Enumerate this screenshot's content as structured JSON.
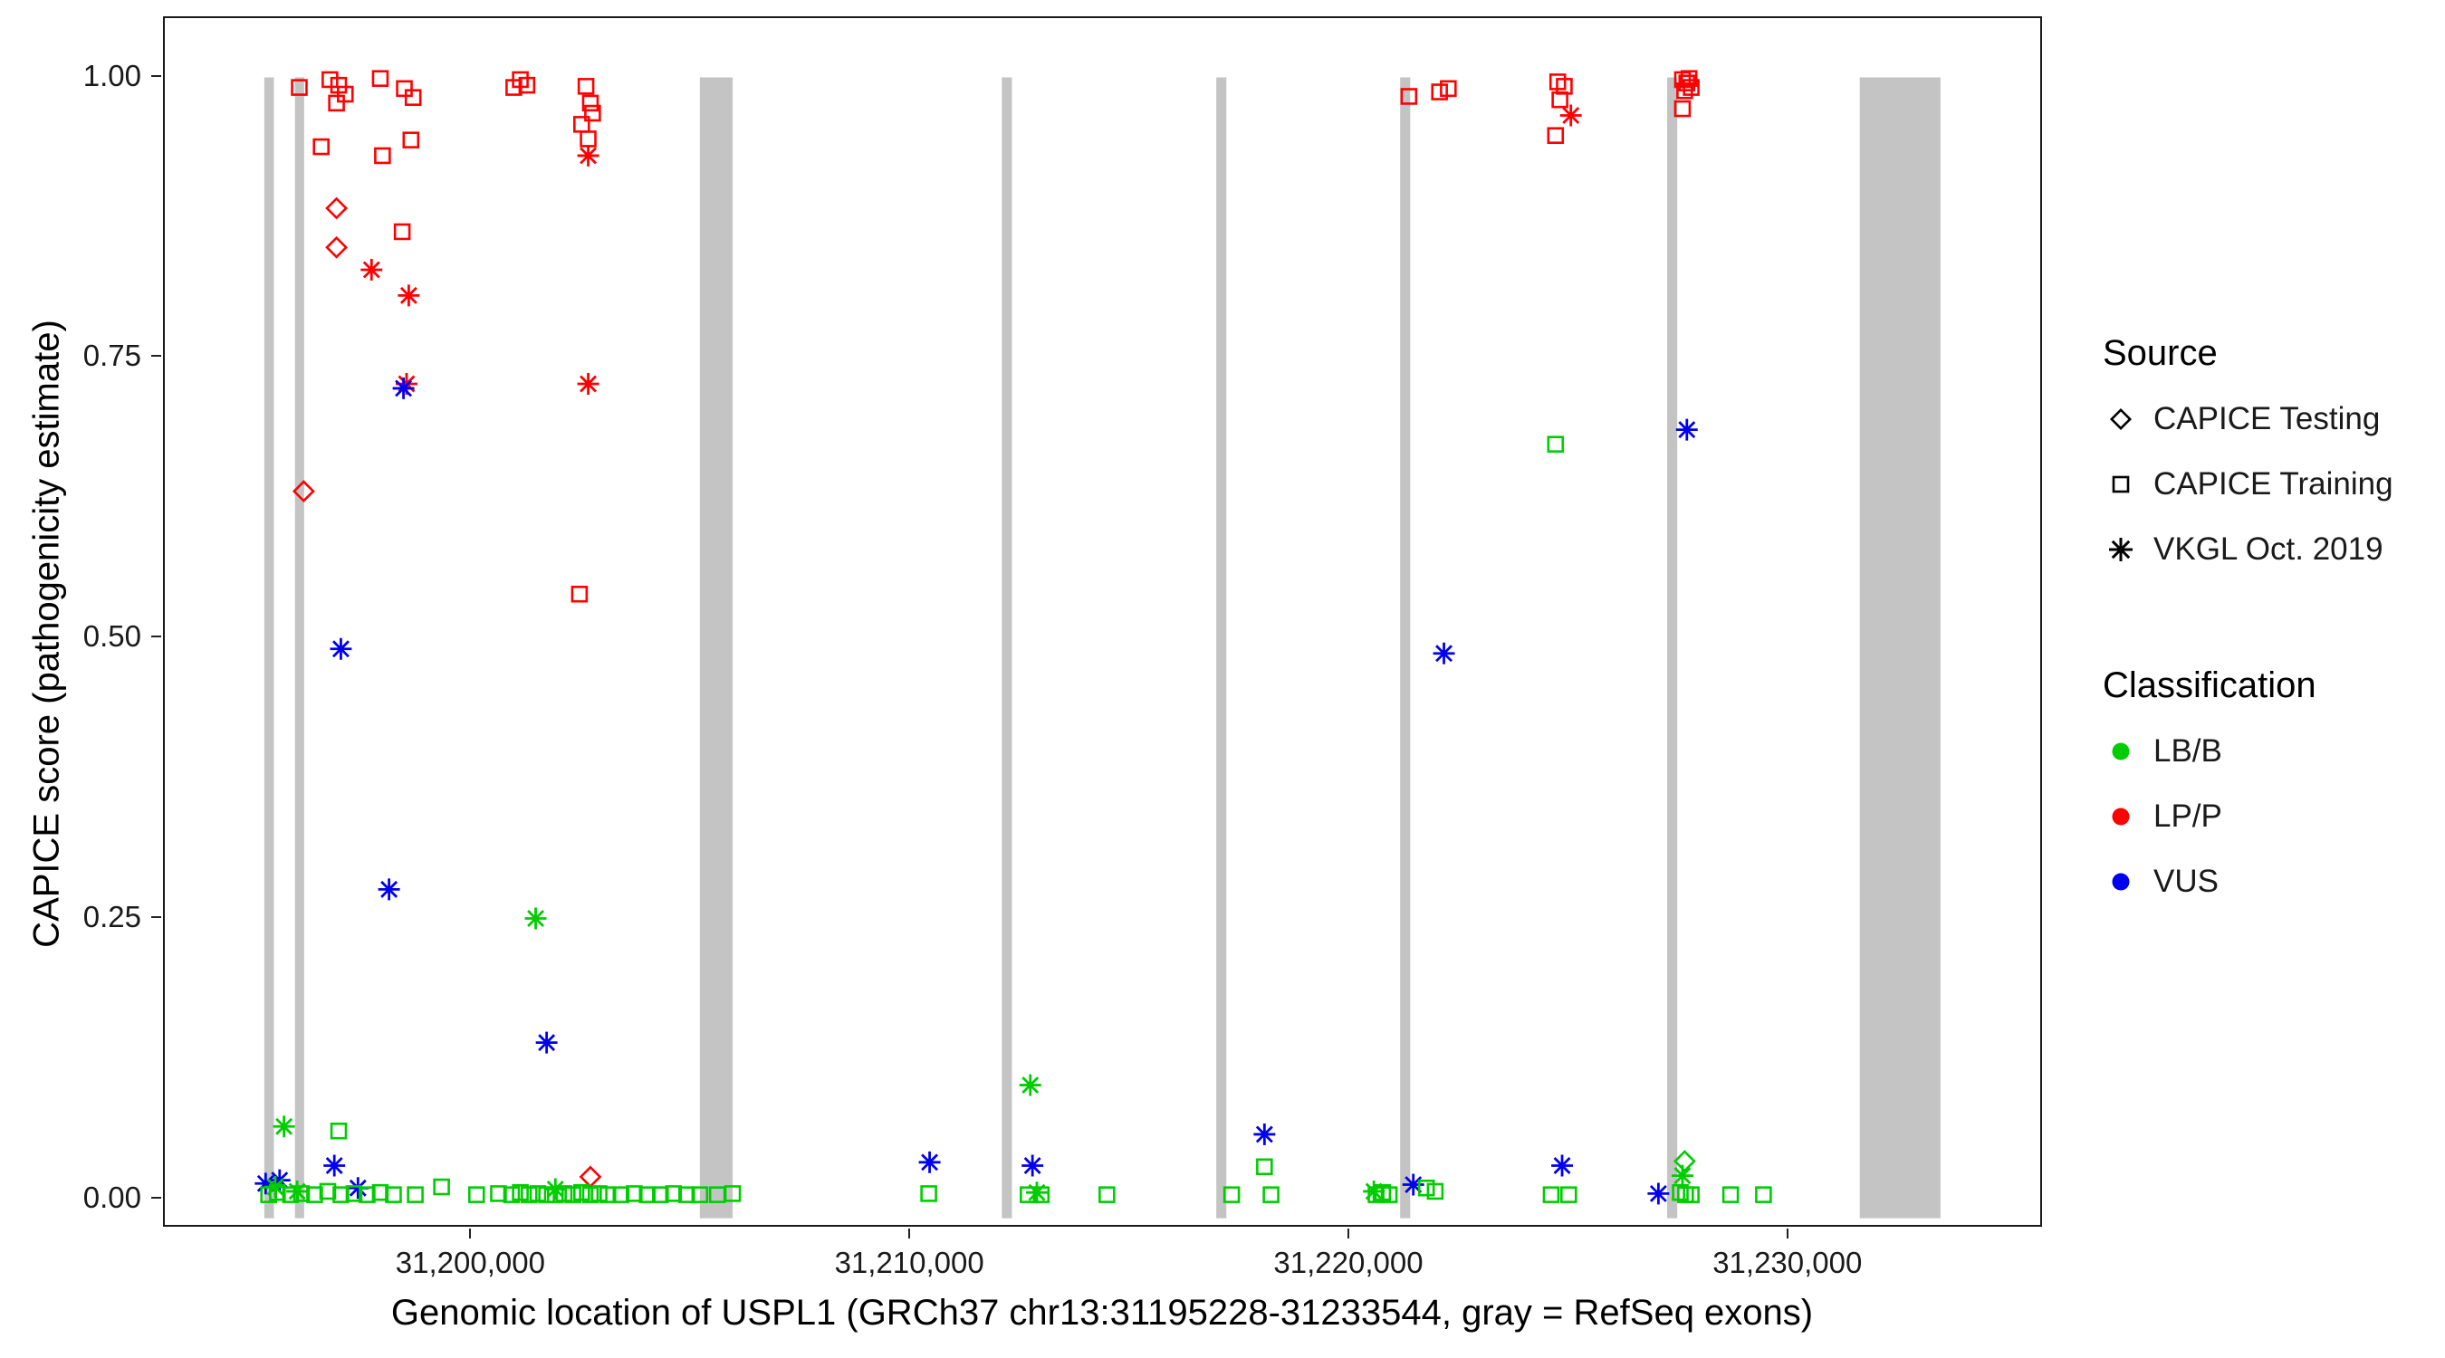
{
  "figure": {
    "y_axis_label": "CAPICE score (pathogenicity estimate)",
    "x_axis_label": "Genomic location of USPL1 (GRCh37 chr13:31195228-31233544, gray = RefSeq exons)"
  },
  "legend": {
    "source_title": "Source",
    "source_items": [
      {
        "label": "CAPICE Testing",
        "shape": "diamond"
      },
      {
        "label": "CAPICE Training",
        "shape": "square"
      },
      {
        "label": "VKGL Oct. 2019",
        "shape": "asterisk"
      }
    ],
    "classification_title": "Classification",
    "classification_items": [
      {
        "label": "LB/B",
        "color": "#00CD00"
      },
      {
        "label": "LP/P",
        "color": "#FF0000"
      },
      {
        "label": "VUS",
        "color": "#0000EE"
      }
    ]
  },
  "chart_data": {
    "type": "scatter",
    "title": "",
    "xlabel": "Genomic location of USPL1 (GRCh37 chr13:31195228-31233544, gray = RefSeq exons)",
    "ylabel": "CAPICE score (pathogenicity estimate)",
    "xlim": [
      31193000,
      31235800
    ],
    "ylim": [
      -0.026,
      1.053
    ],
    "grid": false,
    "legend_position": "right",
    "x_ticks": [
      {
        "value": 31200000,
        "label": "31,200,000"
      },
      {
        "value": 31210000,
        "label": "31,210,000"
      },
      {
        "value": 31220000,
        "label": "31,220,000"
      },
      {
        "value": 31230000,
        "label": "31,230,000"
      }
    ],
    "y_ticks": [
      {
        "value": 0.0,
        "label": "0.00"
      },
      {
        "value": 0.25,
        "label": "0.25"
      },
      {
        "value": 0.5,
        "label": "0.50"
      },
      {
        "value": 0.75,
        "label": "0.75"
      },
      {
        "value": 1.0,
        "label": "1.00"
      }
    ],
    "exon_color": "#C4C4C4",
    "exons": [
      [
        31195250,
        31195470
      ],
      [
        31195950,
        31196160
      ],
      [
        31205200,
        31205950
      ],
      [
        31212100,
        31212330
      ],
      [
        31217000,
        31217230
      ],
      [
        31221200,
        31221430
      ],
      [
        31227300,
        31227530
      ],
      [
        31231700,
        31233544
      ]
    ],
    "colors": {
      "LB": "#00CD00",
      "LP": "#FF0000",
      "VUS": "#0000EE"
    },
    "shapes": {
      "sq": "open-square (CAPICE Training)",
      "di": "open-diamond (CAPICE Testing)",
      "as": "asterisk (VKGL Oct. 2019)"
    },
    "points": [
      [
        31196050,
        0.991,
        "sq",
        "LP"
      ],
      [
        31196750,
        0.998,
        "sq",
        "LP"
      ],
      [
        31196950,
        0.993,
        "sq",
        "LP"
      ],
      [
        31197100,
        0.985,
        "sq",
        "LP"
      ],
      [
        31196900,
        0.977,
        "sq",
        "LP"
      ],
      [
        31197900,
        0.999,
        "sq",
        "LP"
      ],
      [
        31198450,
        0.99,
        "sq",
        "LP"
      ],
      [
        31198650,
        0.982,
        "sq",
        "LP"
      ],
      [
        31196550,
        0.938,
        "sq",
        "LP"
      ],
      [
        31197950,
        0.93,
        "sq",
        "LP"
      ],
      [
        31198600,
        0.944,
        "sq",
        "LP"
      ],
      [
        31198400,
        0.862,
        "sq",
        "LP"
      ],
      [
        31196900,
        0.883,
        "di",
        "LP"
      ],
      [
        31196900,
        0.848,
        "di",
        "LP"
      ],
      [
        31196150,
        0.63,
        "di",
        "LP"
      ],
      [
        31197700,
        0.828,
        "as",
        "LP"
      ],
      [
        31198550,
        0.805,
        "as",
        "LP"
      ],
      [
        31198500,
        0.726,
        "as",
        "LP"
      ],
      [
        31198430,
        0.722,
        "as",
        "VUS"
      ],
      [
        31197000,
        0.489,
        "as",
        "VUS"
      ],
      [
        31198100,
        0.274,
        "as",
        "VUS"
      ],
      [
        31200950,
        0.991,
        "sq",
        "LP"
      ],
      [
        31201100,
        0.998,
        "sq",
        "LP"
      ],
      [
        31201250,
        0.993,
        "sq",
        "LP"
      ],
      [
        31202600,
        0.992,
        "sq",
        "LP"
      ],
      [
        31202700,
        0.977,
        "sq",
        "LP"
      ],
      [
        31202750,
        0.968,
        "sq",
        "LP"
      ],
      [
        31202500,
        0.958,
        "sq",
        "LP"
      ],
      [
        31202650,
        0.945,
        "sq",
        "LP"
      ],
      [
        31202650,
        0.93,
        "as",
        "LP"
      ],
      [
        31202650,
        0.726,
        "as",
        "LP"
      ],
      [
        31202450,
        0.538,
        "sq",
        "LP"
      ],
      [
        31201450,
        0.248,
        "as",
        "LB"
      ],
      [
        31201700,
        0.137,
        "as",
        "VUS"
      ],
      [
        31221400,
        0.983,
        "sq",
        "LP"
      ],
      [
        31222100,
        0.987,
        "sq",
        "LP"
      ],
      [
        31222300,
        0.99,
        "sq",
        "LP"
      ],
      [
        31222200,
        0.485,
        "as",
        "VUS"
      ],
      [
        31224800,
        0.996,
        "sq",
        "LP"
      ],
      [
        31224950,
        0.992,
        "sq",
        "LP"
      ],
      [
        31224850,
        0.98,
        "sq",
        "LP"
      ],
      [
        31224750,
        0.948,
        "sq",
        "LP"
      ],
      [
        31225100,
        0.966,
        "as",
        "LP"
      ],
      [
        31224750,
        0.672,
        "sq",
        "LB"
      ],
      [
        31224900,
        0.027,
        "as",
        "VUS"
      ],
      [
        31224650,
        0.001,
        "sq",
        "LB"
      ],
      [
        31225050,
        0.001,
        "sq",
        "LB"
      ],
      [
        31227650,
        0.998,
        "sq",
        "LP"
      ],
      [
        31227750,
        0.995,
        "sq",
        "LP"
      ],
      [
        31227850,
        0.991,
        "sq",
        "LP"
      ],
      [
        31227800,
        0.999,
        "sq",
        "LP"
      ],
      [
        31227700,
        0.988,
        "sq",
        "LP"
      ],
      [
        31227650,
        0.972,
        "sq",
        "LP"
      ],
      [
        31227750,
        0.685,
        "as",
        "VUS"
      ],
      [
        31227100,
        0.002,
        "as",
        "VUS"
      ],
      [
        31227700,
        0.031,
        "di",
        "LB"
      ],
      [
        31227650,
        0.018,
        "as",
        "LB"
      ],
      [
        31227600,
        0.003,
        "sq",
        "LB"
      ],
      [
        31227720,
        0.001,
        "sq",
        "LB"
      ],
      [
        31227850,
        0.001,
        "sq",
        "LB"
      ],
      [
        31228750,
        0.001,
        "sq",
        "LB"
      ],
      [
        31229500,
        0.001,
        "sq",
        "LB"
      ],
      [
        31210450,
        0.03,
        "as",
        "VUS"
      ],
      [
        31210430,
        0.002,
        "sq",
        "LB"
      ],
      [
        31212750,
        0.099,
        "as",
        "LB"
      ],
      [
        31212800,
        0.027,
        "as",
        "VUS"
      ],
      [
        31212700,
        0.001,
        "sq",
        "LB"
      ],
      [
        31212900,
        0.003,
        "as",
        "LB"
      ],
      [
        31213000,
        0.001,
        "sq",
        "LB"
      ],
      [
        31214500,
        0.001,
        "sq",
        "LB"
      ],
      [
        31218100,
        0.055,
        "as",
        "VUS"
      ],
      [
        31218100,
        0.026,
        "sq",
        "LB"
      ],
      [
        31217350,
        0.001,
        "sq",
        "LB"
      ],
      [
        31218250,
        0.001,
        "sq",
        "LB"
      ],
      [
        31220600,
        0.004,
        "as",
        "LB"
      ],
      [
        31220650,
        0.001,
        "sq",
        "LB"
      ],
      [
        31220800,
        0.003,
        "sq",
        "LB"
      ],
      [
        31220950,
        0.001,
        "sq",
        "LB"
      ],
      [
        31221500,
        0.01,
        "as",
        "VUS"
      ],
      [
        31221800,
        0.007,
        "sq",
        "LB"
      ],
      [
        31222000,
        0.004,
        "sq",
        "LB"
      ],
      [
        31195280,
        0.011,
        "as",
        "VUS"
      ],
      [
        31195600,
        0.014,
        "as",
        "VUS"
      ],
      [
        31196850,
        0.027,
        "as",
        "VUS"
      ],
      [
        31197390,
        0.007,
        "as",
        "VUS"
      ],
      [
        31195700,
        0.062,
        "as",
        "LB"
      ],
      [
        31195500,
        0.008,
        "as",
        "LB"
      ],
      [
        31196000,
        0.004,
        "as",
        "LB"
      ],
      [
        31201900,
        0.006,
        "as",
        "LB"
      ],
      [
        31196950,
        0.058,
        "sq",
        "LB"
      ],
      [
        31202700,
        0.017,
        "di",
        "LP"
      ],
      [
        31195350,
        0.001,
        "sq",
        "LB"
      ],
      [
        31195550,
        0.003,
        "sq",
        "LB"
      ],
      [
        31195850,
        0.001,
        "sq",
        "LB"
      ],
      [
        31196100,
        0.002,
        "sq",
        "LB"
      ],
      [
        31196400,
        0.001,
        "sq",
        "LB"
      ],
      [
        31196700,
        0.004,
        "sq",
        "LB"
      ],
      [
        31197000,
        0.001,
        "sq",
        "LB"
      ],
      [
        31197300,
        0.002,
        "sq",
        "LB"
      ],
      [
        31197600,
        0.001,
        "sq",
        "LB"
      ],
      [
        31197900,
        0.003,
        "sq",
        "LB"
      ],
      [
        31198200,
        0.001,
        "sq",
        "LB"
      ],
      [
        31198700,
        0.001,
        "sq",
        "LB"
      ],
      [
        31199300,
        0.008,
        "sq",
        "LB"
      ],
      [
        31200100,
        0.001,
        "sq",
        "LB"
      ],
      [
        31200600,
        0.002,
        "sq",
        "LB"
      ],
      [
        31200900,
        0.001,
        "sq",
        "LB"
      ],
      [
        31201100,
        0.003,
        "sq",
        "LB"
      ],
      [
        31201300,
        0.001,
        "sq",
        "LB"
      ],
      [
        31201500,
        0.002,
        "sq",
        "LB"
      ],
      [
        31201700,
        0.001,
        "sq",
        "LB"
      ],
      [
        31201900,
        0.001,
        "sq",
        "LB"
      ],
      [
        31202100,
        0.002,
        "sq",
        "LB"
      ],
      [
        31202300,
        0.001,
        "sq",
        "LB"
      ],
      [
        31202500,
        0.003,
        "sq",
        "LB"
      ],
      [
        31202700,
        0.001,
        "sq",
        "LB"
      ],
      [
        31202900,
        0.002,
        "sq",
        "LB"
      ],
      [
        31203100,
        0.001,
        "sq",
        "LB"
      ],
      [
        31203400,
        0.001,
        "sq",
        "LB"
      ],
      [
        31203700,
        0.002,
        "sq",
        "LB"
      ],
      [
        31204000,
        0.001,
        "sq",
        "LB"
      ],
      [
        31204300,
        0.001,
        "sq",
        "LB"
      ],
      [
        31204600,
        0.002,
        "sq",
        "LB"
      ],
      [
        31204900,
        0.001,
        "sq",
        "LB"
      ],
      [
        31205200,
        0.001,
        "sq",
        "LB"
      ],
      [
        31205600,
        0.001,
        "sq",
        "LB"
      ],
      [
        31205950,
        0.002,
        "sq",
        "LB"
      ]
    ]
  }
}
